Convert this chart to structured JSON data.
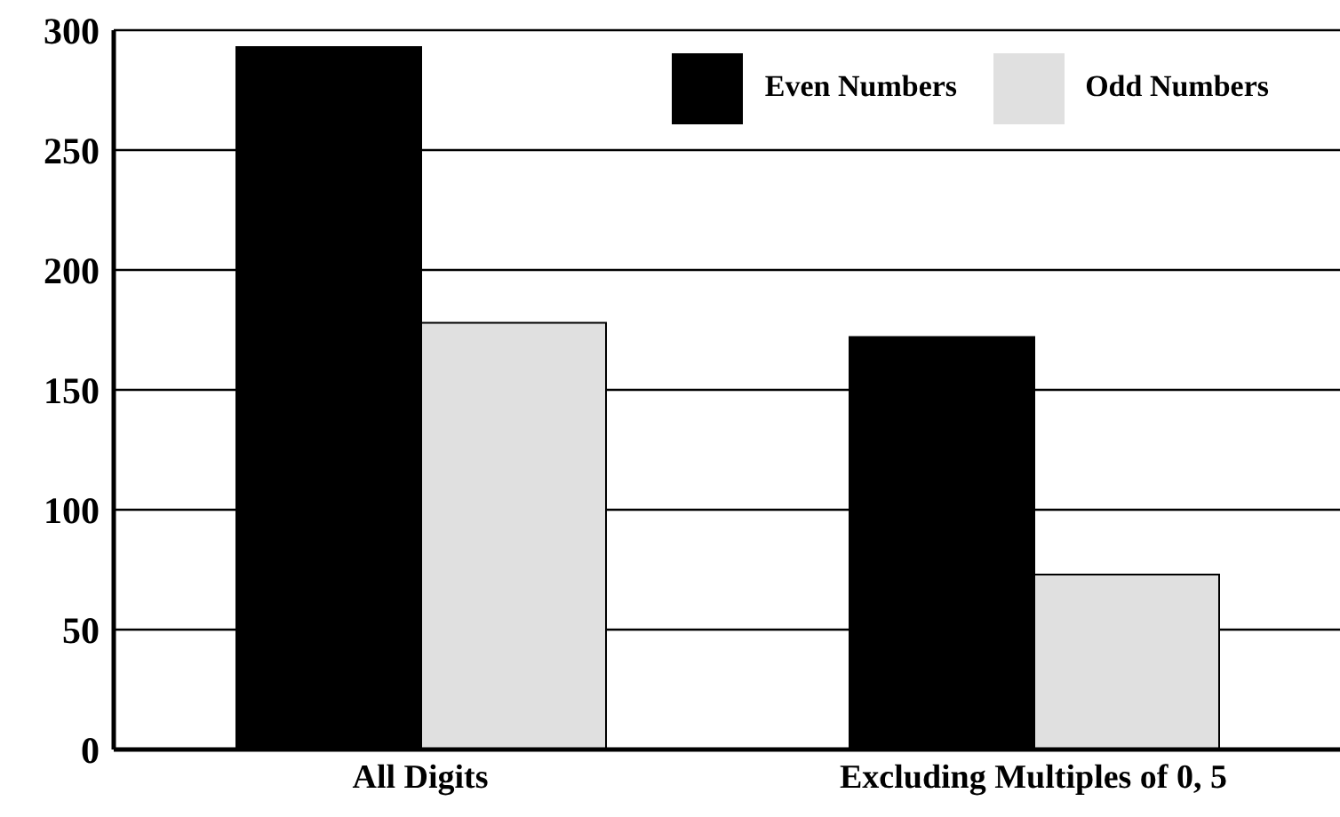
{
  "chart_data": {
    "type": "bar",
    "categories": [
      "All Digits",
      "Excluding Multiples of 0, 5"
    ],
    "series": [
      {
        "name": "Even Numbers",
        "color": "#000000",
        "values": [
          293,
          172
        ]
      },
      {
        "name": "Odd Numbers",
        "color": "#e0e0e0",
        "values": [
          178,
          73
        ]
      }
    ],
    "ylim": [
      0,
      300
    ],
    "yticks": [
      0,
      50,
      100,
      150,
      200,
      250,
      300
    ],
    "grid": "y",
    "legend": "top right"
  }
}
